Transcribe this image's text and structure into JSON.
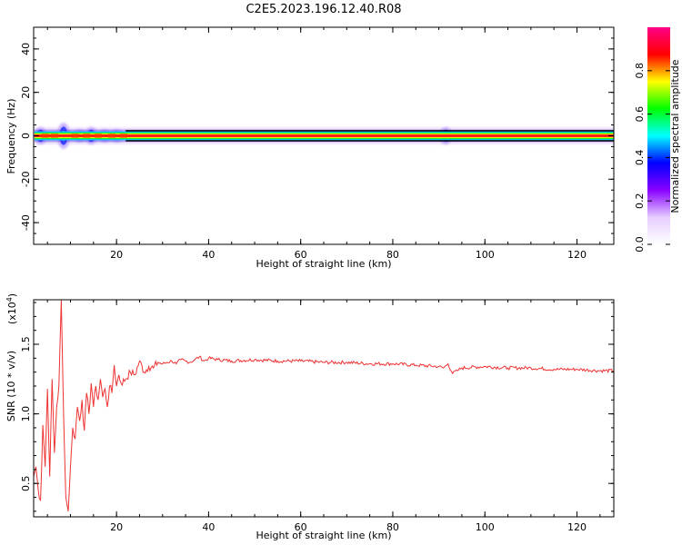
{
  "figure": {
    "title": "C2E5.2023.196.12.40.R08"
  },
  "chart_data": [
    {
      "type": "heatmap",
      "xlabel": "Height of straight line (km)",
      "ylabel": "Frequency (Hz)",
      "xlim": [
        2,
        128
      ],
      "ylim": [
        -50,
        50
      ],
      "xticks": [
        "20",
        "40",
        "60",
        "80",
        "100",
        "120"
      ],
      "yticks": [
        "40",
        "20",
        "0",
        "-20",
        "-40"
      ],
      "colorbar": {
        "label": "Normalized spectral amplitude",
        "range": [
          0,
          1
        ],
        "ticks": [
          "0.0",
          "0.2",
          "0.4",
          "0.6",
          "0.8"
        ],
        "colors": [
          "#ffffff",
          "#e6ccff",
          "#8800ff",
          "#0000ff",
          "#00ffff",
          "#00ff00",
          "#ffff00",
          "#ff0000",
          "#ff0088"
        ]
      },
      "band": {
        "frequency_hz": 0,
        "half_width_hz": 1.2
      },
      "features": [
        {
          "x": 3.5,
          "spread_hz": 4
        },
        {
          "x": 8.5,
          "spread_hz": 6
        },
        {
          "x": 12,
          "spread_hz": 3
        },
        {
          "x": 14.5,
          "spread_hz": 4
        },
        {
          "x": 17.5,
          "spread_hz": 3
        },
        {
          "x": 20,
          "spread_hz": 3
        },
        {
          "x": 39,
          "spread_hz": 2
        },
        {
          "x": 91.5,
          "spread_hz": 4
        }
      ]
    },
    {
      "type": "line",
      "xlabel": "Height of straight line (km)",
      "ylabel": "SNR (10 * v/v)",
      "scale_label": "(x10",
      "scale_exp": "4",
      "scale_close": ")",
      "xlim": [
        2,
        128
      ],
      "ylim": [
        0.26,
        1.82
      ],
      "xticks": [
        "20",
        "40",
        "60",
        "80",
        "100",
        "120"
      ],
      "yticks": [
        "0.5",
        "1.0",
        "1.5"
      ],
      "line_color": "#ee3333",
      "series": [
        {
          "x": [
            2,
            2.5,
            3,
            3.5,
            4,
            4.5,
            5,
            5.5,
            6,
            6.5,
            7,
            7.5,
            8,
            8.5,
            9,
            9.5,
            10,
            10.5,
            11,
            11.5,
            12,
            12.5,
            13,
            13.5,
            14,
            14.5,
            15,
            15.5,
            16,
            16.5,
            17,
            17.5,
            18,
            18.5,
            19,
            19.5,
            20,
            20.5,
            21,
            22,
            23,
            24,
            25,
            26,
            27,
            28,
            29,
            30,
            31,
            32,
            33,
            34,
            35,
            36,
            37,
            38,
            39,
            40,
            42,
            45,
            50,
            55,
            60,
            65,
            70,
            75,
            80,
            85,
            90,
            91,
            92,
            93,
            94,
            95,
            100,
            105,
            110,
            115,
            120,
            125,
            128
          ],
          "y": [
            0.55,
            0.62,
            0.45,
            0.38,
            0.92,
            0.62,
            1.18,
            0.55,
            1.25,
            0.72,
            1.05,
            1.2,
            1.82,
            1.0,
            0.4,
            0.3,
            0.62,
            0.9,
            0.82,
            1.05,
            0.95,
            1.1,
            0.88,
            1.15,
            1.0,
            1.22,
            1.05,
            1.2,
            1.1,
            1.25,
            1.12,
            1.18,
            1.05,
            1.2,
            1.15,
            1.35,
            1.2,
            1.28,
            1.22,
            1.25,
            1.3,
            1.28,
            1.38,
            1.3,
            1.34,
            1.33,
            1.37,
            1.36,
            1.37,
            1.38,
            1.36,
            1.39,
            1.38,
            1.37,
            1.39,
            1.41,
            1.38,
            1.4,
            1.39,
            1.38,
            1.39,
            1.38,
            1.38,
            1.37,
            1.37,
            1.36,
            1.36,
            1.35,
            1.34,
            1.33,
            1.36,
            1.29,
            1.31,
            1.33,
            1.34,
            1.33,
            1.33,
            1.32,
            1.32,
            1.31,
            1.31
          ]
        }
      ]
    }
  ]
}
